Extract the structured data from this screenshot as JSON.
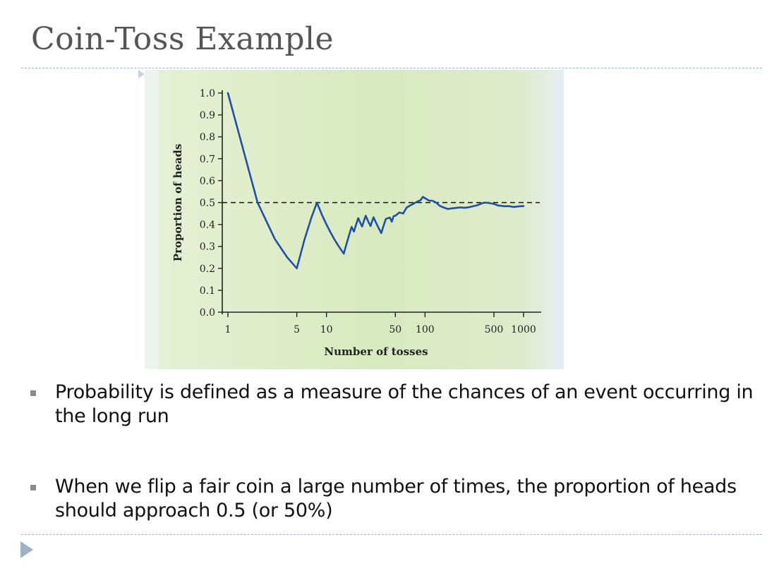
{
  "slide": {
    "title": "Coin-Toss Example"
  },
  "bullets": [
    "Probability is defined as a measure of the chances of an event occurring in the long run",
    "When we flip a fair coin a large number of times, the proportion of heads should approach 0.5 (or 50%)"
  ],
  "chart_data": {
    "type": "line",
    "title": "",
    "xlabel": "Number of tosses",
    "ylabel": "Proportion of heads",
    "x_scale": "log",
    "xlim": [
      1,
      1000
    ],
    "ylim": [
      0.0,
      1.0
    ],
    "x_ticks": [
      1,
      5,
      10,
      50,
      100,
      500,
      1000
    ],
    "y_ticks": [
      "0.0",
      "0.1",
      "0.2",
      "0.3",
      "0.4",
      "0.5",
      "0.6",
      "0.7",
      "0.8",
      "0.9",
      "1.0"
    ],
    "reference_line": {
      "y": 0.5,
      "style": "dashed"
    },
    "grid": false,
    "legend": "none",
    "colors": {
      "series": "#1f4fa8",
      "reference": "#111111",
      "background": "#dcecc6"
    },
    "series": [
      {
        "x": [
          1,
          2,
          3,
          4,
          5,
          6,
          7,
          8,
          9,
          10,
          11,
          12,
          13,
          14,
          15,
          16,
          17,
          18,
          19,
          20,
          21,
          22,
          23,
          24,
          25,
          26,
          27,
          28,
          29,
          30,
          32,
          34,
          36,
          38,
          40,
          42,
          44,
          46,
          48,
          50,
          55,
          60,
          65,
          70,
          75,
          80,
          85,
          90,
          95,
          100,
          110,
          120,
          130,
          140,
          150,
          170,
          190,
          210,
          230,
          250,
          280,
          310,
          340,
          370,
          400,
          450,
          500,
          550,
          600,
          650,
          700,
          800,
          900,
          1000
        ],
        "y": [
          1.0,
          0.5,
          0.333,
          0.25,
          0.2,
          0.333,
          0.429,
          0.5,
          0.444,
          0.4,
          0.364,
          0.333,
          0.308,
          0.286,
          0.267,
          0.313,
          0.353,
          0.389,
          0.368,
          0.4,
          0.429,
          0.409,
          0.391,
          0.417,
          0.44,
          0.423,
          0.407,
          0.393,
          0.414,
          0.433,
          0.406,
          0.382,
          0.361,
          0.395,
          0.425,
          0.429,
          0.432,
          0.413,
          0.438,
          0.44,
          0.455,
          0.45,
          0.477,
          0.486,
          0.493,
          0.5,
          0.506,
          0.511,
          0.526,
          0.52,
          0.509,
          0.508,
          0.5,
          0.486,
          0.48,
          0.471,
          0.474,
          0.476,
          0.478,
          0.476,
          0.479,
          0.484,
          0.488,
          0.495,
          0.5,
          0.498,
          0.494,
          0.487,
          0.485,
          0.483,
          0.484,
          0.48,
          0.483,
          0.484
        ]
      }
    ]
  }
}
